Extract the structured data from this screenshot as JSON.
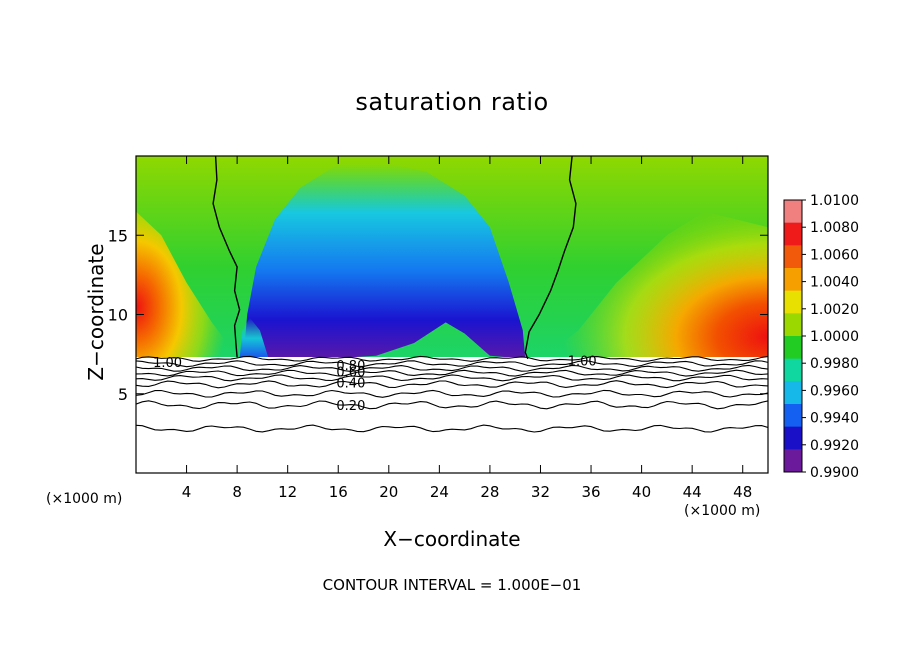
{
  "chart_data": {
    "type": "heatmap",
    "title": "saturation ratio",
    "xlabel": "X−coordinate",
    "ylabel": "Z−coordinate",
    "x_unit_left": "(×1000 m)",
    "x_unit_right": "(×1000 m)",
    "footer": "CONTOUR INTERVAL = 1.000E−01",
    "xlim": [
      0,
      50
    ],
    "ylim": [
      0,
      20
    ],
    "x_ticks": [
      "4",
      "8",
      "12",
      "16",
      "20",
      "24",
      "28",
      "32",
      "36",
      "40",
      "44",
      "48"
    ],
    "x_tick_values": [
      4,
      8,
      12,
      16,
      20,
      24,
      28,
      32,
      36,
      40,
      44,
      48
    ],
    "y_ticks": [
      "5",
      "10",
      "15"
    ],
    "y_tick_values": [
      5,
      10,
      15
    ],
    "colorbar": {
      "labels": [
        "1.0100",
        "1.0080",
        "1.0060",
        "1.0040",
        "1.0020",
        "1.0000",
        "0.9980",
        "0.9960",
        "0.9940",
        "0.9920",
        "0.9900"
      ],
      "colors": [
        "#f07f80",
        "#ef1a1a",
        "#f05a0a",
        "#f5a000",
        "#e8e000",
        "#9ad800",
        "#23cc23",
        "#10d6a0",
        "#15b8e8",
        "#1460f0",
        "#1a10c8",
        "#6a1a9a"
      ]
    },
    "contour_labels": [
      {
        "text": "1.00",
        "x": 2.5,
        "y": 7.0
      },
      {
        "text": "1.00",
        "x": 35.3,
        "y": 7.1
      },
      {
        "text": "0.80",
        "x": 17.0,
        "y": 6.8
      },
      {
        "text": "0.60",
        "x": 17.0,
        "y": 6.4
      },
      {
        "text": "0.40",
        "x": 17.0,
        "y": 5.7
      },
      {
        "text": "0.20",
        "x": 17.0,
        "y": 4.3
      }
    ],
    "contour_levels": [
      0.2,
      0.4,
      0.6,
      0.8,
      1.0
    ],
    "colorscale_range": [
      0.99,
      1.01
    ]
  }
}
